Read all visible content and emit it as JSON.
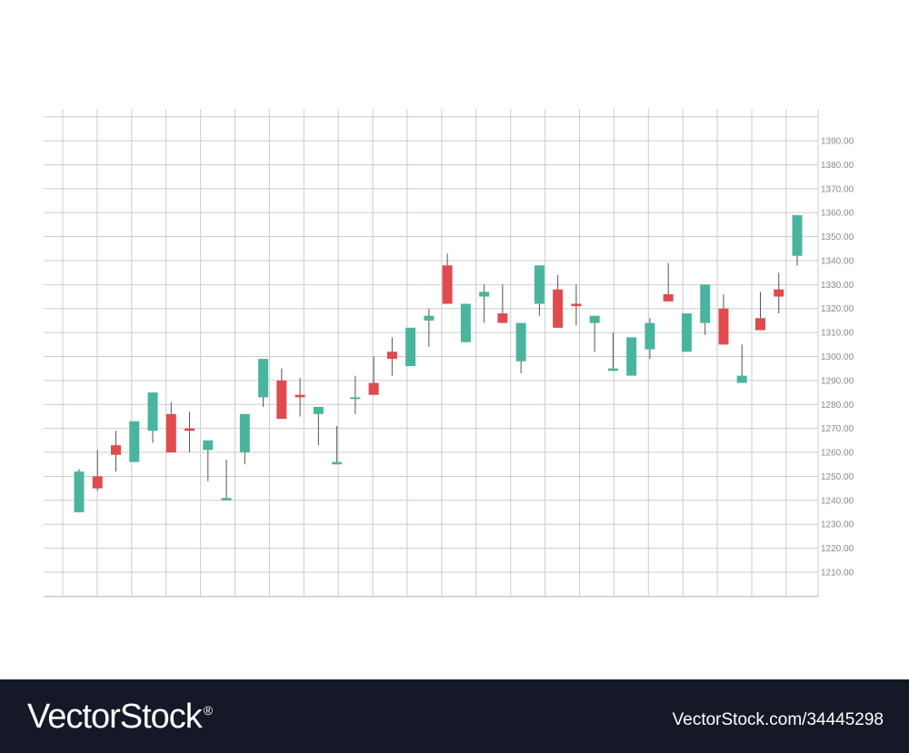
{
  "chart_data": {
    "type": "candlestick",
    "title": "",
    "xlabel": "",
    "ylabel": "",
    "ylim": [
      1200,
      1395
    ],
    "y_ticks": [
      1210,
      1220,
      1230,
      1240,
      1250,
      1260,
      1270,
      1280,
      1290,
      1300,
      1310,
      1320,
      1330,
      1340,
      1350,
      1360,
      1370,
      1380,
      1390
    ],
    "y_tick_labels": [
      "1210.00",
      "1220.00",
      "1230.00",
      "1240.00",
      "1250.00",
      "1260.00",
      "1270.00",
      "1280.00",
      "1290.00",
      "1300.00",
      "1310.00",
      "1320.00",
      "1330.00",
      "1340.00",
      "1350.00",
      "1360.00",
      "1370.00",
      "1380.00",
      "1390.00"
    ],
    "y_axis_side": "right",
    "grid": true,
    "colors": {
      "up": "#4ab59e",
      "down": "#df4b4f",
      "wick": "#555555",
      "grid": "#cccccc"
    },
    "candles": [
      {
        "open": 1235,
        "close": 1252,
        "high": 1253,
        "low": 1235
      },
      {
        "open": 1250,
        "close": 1245,
        "high": 1261,
        "low": 1244
      },
      {
        "open": 1263,
        "close": 1259,
        "high": 1269,
        "low": 1252
      },
      {
        "open": 1256,
        "close": 1273,
        "high": 1273,
        "low": 1256
      },
      {
        "open": 1269,
        "close": 1285,
        "high": 1285,
        "low": 1264
      },
      {
        "open": 1276,
        "close": 1260,
        "high": 1281,
        "low": 1260
      },
      {
        "open": 1270,
        "close": 1269,
        "high": 1277,
        "low": 1260
      },
      {
        "open": 1261,
        "close": 1265,
        "high": 1265,
        "low": 1248
      },
      {
        "open": 1240,
        "close": 1241,
        "high": 1257,
        "low": 1240
      },
      {
        "open": 1260,
        "close": 1276,
        "high": 1276,
        "low": 1255
      },
      {
        "open": 1283,
        "close": 1299,
        "high": 1299,
        "low": 1279
      },
      {
        "open": 1290,
        "close": 1274,
        "high": 1295,
        "low": 1274
      },
      {
        "open": 1284,
        "close": 1283,
        "high": 1291,
        "low": 1275
      },
      {
        "open": 1276,
        "close": 1279,
        "high": 1279,
        "low": 1263
      },
      {
        "open": 1255,
        "close": 1256,
        "high": 1271,
        "low": 1255
      },
      {
        "open": 1283,
        "close": 1283,
        "high": 1292,
        "low": 1276
      },
      {
        "open": 1289,
        "close": 1284,
        "high": 1300,
        "low": 1284
      },
      {
        "open": 1302,
        "close": 1299,
        "high": 1308,
        "low": 1292
      },
      {
        "open": 1296,
        "close": 1312,
        "high": 1312,
        "low": 1296
      },
      {
        "open": 1315,
        "close": 1317,
        "high": 1320,
        "low": 1304
      },
      {
        "open": 1338,
        "close": 1322,
        "high": 1343,
        "low": 1322
      },
      {
        "open": 1306,
        "close": 1322,
        "high": 1322,
        "low": 1306
      },
      {
        "open": 1325,
        "close": 1327,
        "high": 1330,
        "low": 1314
      },
      {
        "open": 1318,
        "close": 1314,
        "high": 1330,
        "low": 1314
      },
      {
        "open": 1298,
        "close": 1314,
        "high": 1314,
        "low": 1293
      },
      {
        "open": 1322,
        "close": 1338,
        "high": 1338,
        "low": 1317
      },
      {
        "open": 1328,
        "close": 1312,
        "high": 1334,
        "low": 1312
      },
      {
        "open": 1322,
        "close": 1321,
        "high": 1330,
        "low": 1313
      },
      {
        "open": 1314,
        "close": 1317,
        "high": 1317,
        "low": 1302
      },
      {
        "open": 1294,
        "close": 1295,
        "high": 1310,
        "low": 1294
      },
      {
        "open": 1292,
        "close": 1308,
        "high": 1308,
        "low": 1292
      },
      {
        "open": 1303,
        "close": 1314,
        "high": 1316,
        "low": 1299
      },
      {
        "open": 1326,
        "close": 1323,
        "high": 1339,
        "low": 1323
      },
      {
        "open": 1302,
        "close": 1318,
        "high": 1318,
        "low": 1302
      },
      {
        "open": 1314,
        "close": 1330,
        "high": 1330,
        "low": 1309
      },
      {
        "open": 1320,
        "close": 1305,
        "high": 1326,
        "low": 1305
      },
      {
        "open": 1289,
        "close": 1292,
        "high": 1305,
        "low": 1289
      },
      {
        "open": 1316,
        "close": 1311,
        "high": 1327,
        "low": 1311
      },
      {
        "open": 1328,
        "close": 1325,
        "high": 1335,
        "low": 1318
      },
      {
        "open": 1342,
        "close": 1359,
        "high": 1359,
        "low": 1338
      }
    ]
  },
  "watermark": {
    "brand": "VectorStock",
    "reg": "®",
    "image_id": "VectorStock.com/34445298"
  }
}
